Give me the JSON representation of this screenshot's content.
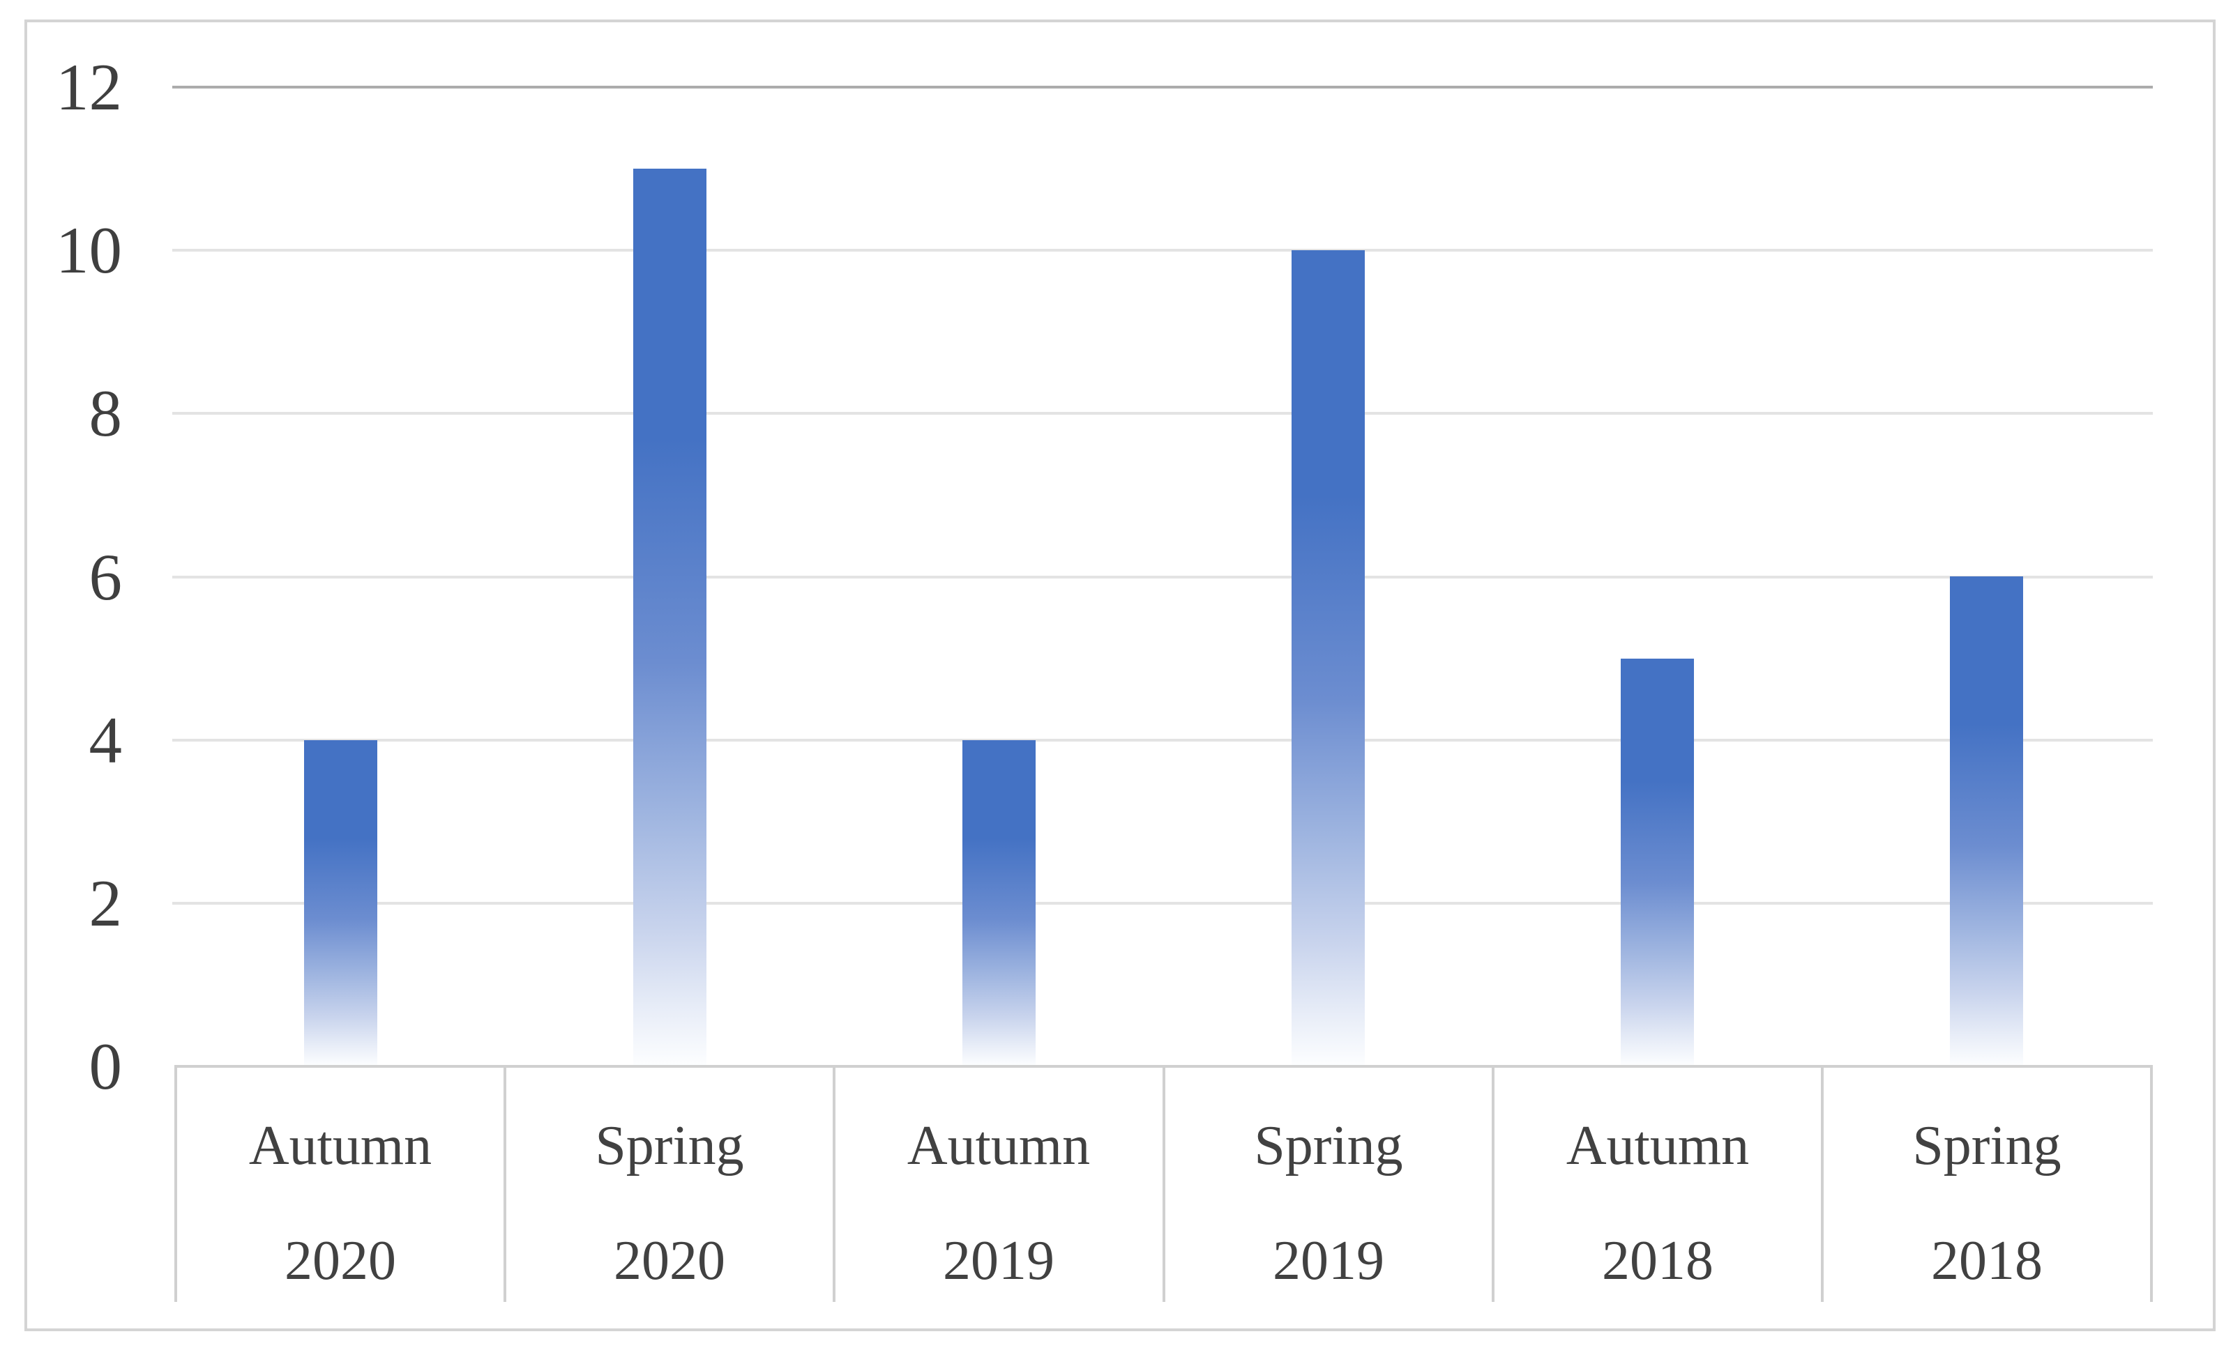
{
  "chart_data": {
    "type": "bar",
    "categories": [
      {
        "season": "Autumn",
        "year": "2020"
      },
      {
        "season": "Spring",
        "year": "2020"
      },
      {
        "season": "Autumn",
        "year": "2019"
      },
      {
        "season": "Spring",
        "year": "2019"
      },
      {
        "season": "Autumn",
        "year": "2018"
      },
      {
        "season": "Spring",
        "year": "2018"
      }
    ],
    "values": [
      4,
      11,
      4,
      10,
      5,
      6
    ],
    "title": "",
    "xlabel": "",
    "ylabel": "",
    "ylim": [
      0,
      12
    ],
    "yticks": [
      0,
      2,
      4,
      6,
      8,
      10,
      12
    ],
    "grid": true,
    "legend": false,
    "colors": {
      "bar_top": "#4472C4",
      "bar_mid": "#6C8DD0",
      "bar_fade": "#9FB5E0",
      "bar_bottom": "#FDFEFF",
      "gridline": "#E3E3E3",
      "gridline_top": "#ACACAC",
      "axis_table_border": "#D0D0D0",
      "figure_border": "#D4D4D4",
      "tick_label": "#3F3F3F",
      "category_label": "#414141"
    }
  }
}
